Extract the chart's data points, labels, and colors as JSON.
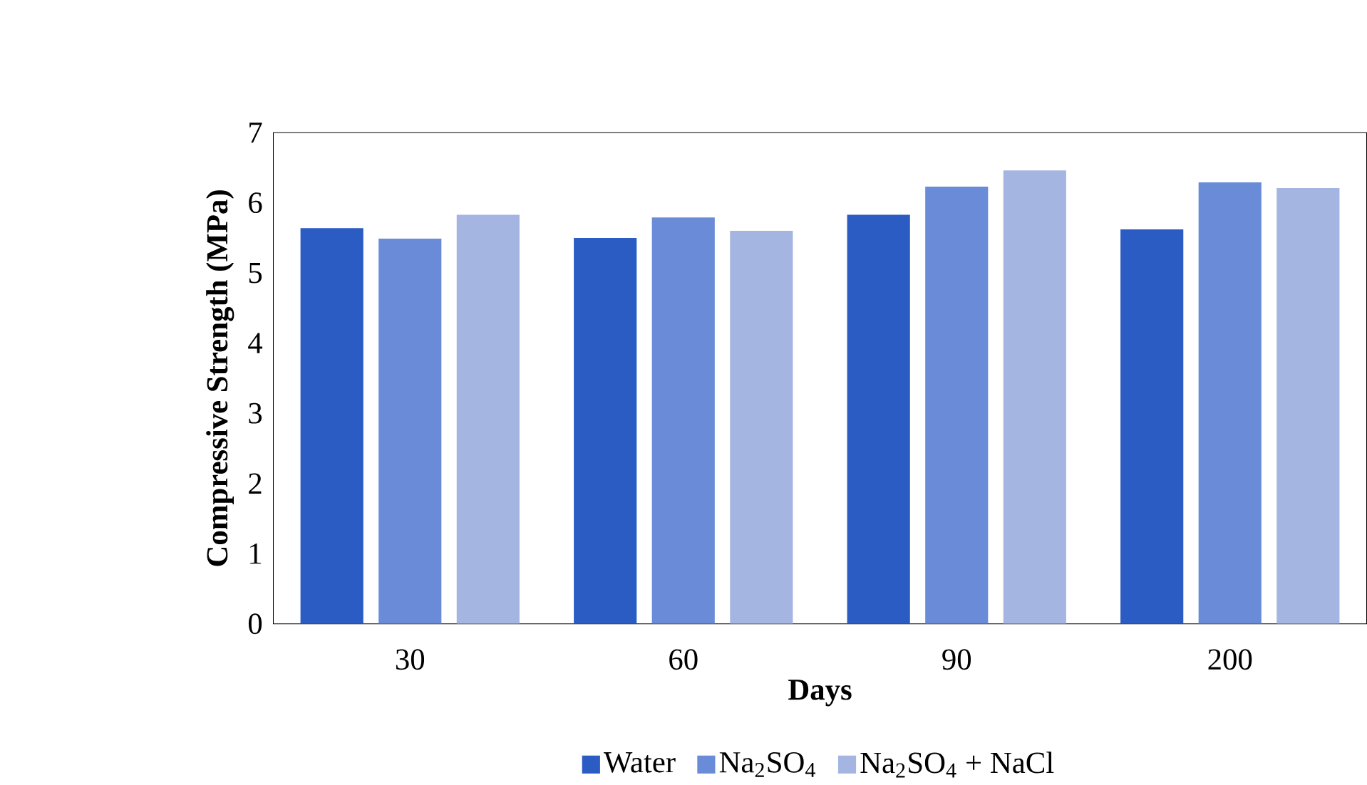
{
  "chart_data": {
    "type": "bar",
    "xlabel": "Days",
    "ylabel": "Compressive Strength (MPa)",
    "categories": [
      "30",
      "60",
      "90",
      "200"
    ],
    "series": [
      {
        "name": "Water",
        "color": "#2a5cc4",
        "values": [
          5.64,
          5.5,
          5.83,
          5.62
        ]
      },
      {
        "name": "Na$_{2}$SO$_{4}$",
        "color": "#6a8cd8",
        "values": [
          5.49,
          5.79,
          6.23,
          6.29
        ]
      },
      {
        "name": "Na$_{2}$SO$_{4}$ + NaCl",
        "color": "#a5b5e2",
        "values": [
          5.83,
          5.6,
          6.46,
          6.21
        ]
      }
    ],
    "ylim": [
      0,
      7
    ],
    "yticks": [
      0,
      1,
      2,
      3,
      4,
      5,
      6,
      7
    ],
    "legend": "bottom",
    "grid": false
  }
}
